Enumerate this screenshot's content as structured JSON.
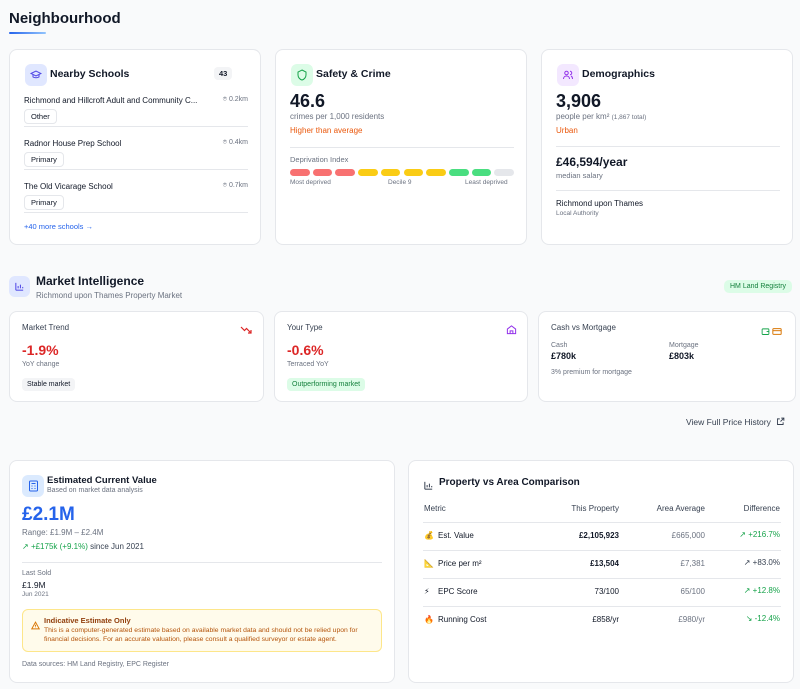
{
  "page": {
    "title": "Neighbourhood"
  },
  "schools": {
    "title": "Nearby Schools",
    "count": "43",
    "items": [
      {
        "name": "Richmond and Hillcroft Adult and Community C...",
        "distance": "0.2km",
        "type": "Other"
      },
      {
        "name": "Radnor House Prep School",
        "distance": "0.4km",
        "type": "Primary"
      },
      {
        "name": "The Old Vicarage School",
        "distance": "0.7km",
        "type": "Primary"
      }
    ],
    "more_link": "+40 more schools →"
  },
  "safety": {
    "title": "Safety & Crime",
    "value": "46.6",
    "unit": "crimes per 1,000 residents",
    "status": "Higher than average",
    "deprivation_label": "Deprivation Index",
    "decile": 9,
    "decile_label": "Decile 9",
    "left_label": "Most deprived",
    "right_label": "Least deprived"
  },
  "demographics": {
    "title": "Demographics",
    "density": "3,906",
    "density_unit": "people per km²",
    "density_total": "(1,867 total)",
    "area_type": "Urban",
    "salary": "£46,594/year",
    "salary_label": "median salary",
    "authority": "Richmond upon Thames",
    "authority_label": "Local Authority"
  },
  "market": {
    "title": "Market Intelligence",
    "subtitle": "Richmond upon Thames Property Market",
    "source_badge": "HM Land Registry",
    "trend": {
      "label": "Market Trend",
      "value": "-1.9%",
      "sub": "YoY change",
      "badge": "Stable market"
    },
    "your_type": {
      "label": "Your Type",
      "value": "-0.6%",
      "sub": "Terraced YoY",
      "badge": "Outperforming market"
    },
    "cash_mortgage": {
      "label": "Cash vs Mortgage",
      "cash_label": "Cash",
      "cash_value": "£780k",
      "mortgage_label": "Mortgage",
      "mortgage_value": "£803k",
      "note": "3% premium for mortgage"
    },
    "history_link": "View Full Price History"
  },
  "estimate": {
    "title": "Estimated Current Value",
    "subtitle": "Based on market data analysis",
    "value": "£2.1M",
    "range": "Range: £1.9M – £2.4M",
    "change": "+£175k (+9.1%)",
    "change_since": "since Jun 2021",
    "last_sold_label": "Last Sold",
    "last_sold_value": "£1.9M",
    "last_sold_date": "Jun 2021",
    "warning_title": "Indicative Estimate Only",
    "warning_text": "This is a computer-generated estimate based on available market data and should not be relied upon for financial decisions. For an accurate valuation, please consult a qualified surveyor or estate agent.",
    "sources": "Data sources: HM Land Registry, EPC Register"
  },
  "comparison": {
    "title": "Property vs Area Comparison",
    "headers": [
      "Metric",
      "This Property",
      "Area Average",
      "Difference"
    ],
    "rows": [
      {
        "icon": "💰",
        "metric": "Est. Value",
        "property": "£2,105,923",
        "area": "£665,000",
        "diff": "+216.7%",
        "trend": "up"
      },
      {
        "icon": "📐",
        "metric": "Price per m²",
        "property": "£13,504",
        "area": "£7,381",
        "diff": "+83.0%",
        "trend": "up-dark"
      },
      {
        "icon": "⚡",
        "metric": "EPC Score",
        "property": "73/100",
        "area": "65/100",
        "diff": "+12.8%",
        "trend": "up"
      },
      {
        "icon": "🔥",
        "metric": "Running Cost",
        "property": "£858/yr",
        "area": "£980/yr",
        "diff": "-12.4%",
        "trend": "down"
      }
    ]
  },
  "colors": {
    "accent": "#2563eb",
    "danger": "#dc2626",
    "orange": "#ea580c",
    "green": "#16a34a"
  }
}
